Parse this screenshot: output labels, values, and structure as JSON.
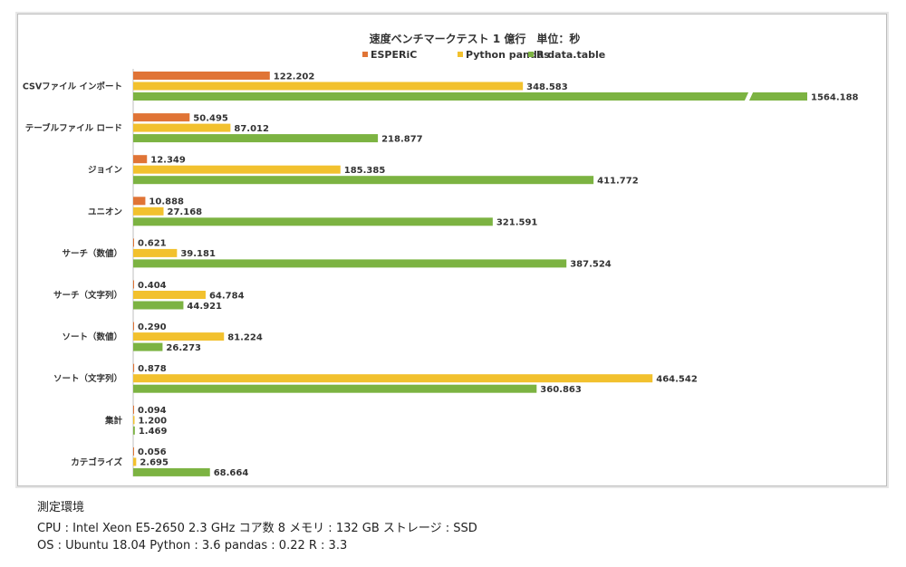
{
  "chart_data": {
    "type": "bar",
    "orientation": "horizontal",
    "title": "速度ベンチマークテスト 1 億行　単位：秒",
    "legend_position": "top",
    "categories": [
      "CSVファイル インポート",
      "テーブルファイル ロード",
      "ジョイン",
      "ユニオン",
      "サーチ（数値）",
      "サーチ（文字列）",
      "ソート（数値）",
      "ソート（文字列）",
      "集計",
      "カテゴライズ"
    ],
    "series": [
      {
        "name": "ESPERiC",
        "color": "#e07436",
        "values": [
          122.202,
          50.495,
          12.349,
          10.888,
          0.621,
          0.404,
          0.29,
          0.878,
          0.094,
          0.056
        ]
      },
      {
        "name": "Python pandas",
        "color": "#f2c12e",
        "values": [
          348.583,
          87.012,
          185.385,
          27.168,
          39.181,
          64.784,
          81.224,
          464.542,
          1.2,
          2.695
        ]
      },
      {
        "name": "R data.table",
        "color": "#7cb342",
        "values": [
          1564.188,
          218.877,
          411.772,
          321.591,
          387.524,
          44.921,
          26.273,
          360.863,
          1.469,
          68.664
        ]
      }
    ],
    "value_labels": [
      [
        "122.202",
        "50.495",
        "12.349",
        "10.888",
        "0.621",
        "0.404",
        "0.290",
        "0.878",
        "0.094",
        "0.056"
      ],
      [
        "348.583",
        "87.012",
        "185.385",
        "27.168",
        "39.181",
        "64.784",
        "81.224",
        "464.542",
        "1.200",
        "2.695"
      ],
      [
        "1564.188",
        "218.877",
        "411.772",
        "321.591",
        "387.524",
        "44.921",
        "26.273",
        "360.863",
        "1.469",
        "68.664"
      ]
    ],
    "axis_break": {
      "series": 2,
      "category": 0
    },
    "xlim": [
      0,
      500
    ],
    "grid": false
  },
  "environment": {
    "title": "測定環境",
    "cpu_line": "CPU : Intel Xeon E5-2650 2.3 GHz コア数 8  メモリ : 132 GB  ストレージ : SSD",
    "os_line": "OS : Ubuntu 18.04  Python : 3.6  pandas : 0.22  R : 3.3"
  }
}
